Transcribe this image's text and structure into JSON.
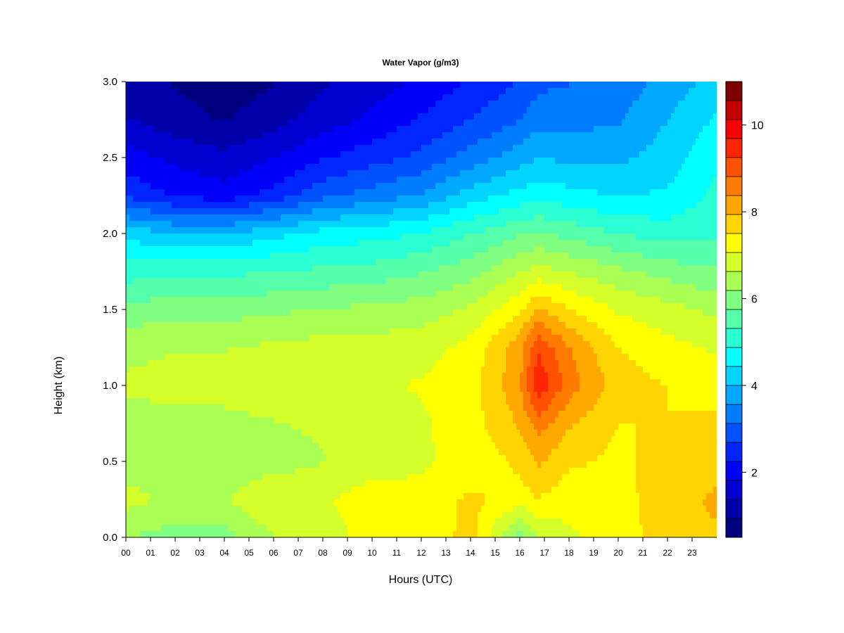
{
  "chart_data": {
    "type": "heatmap",
    "title": "Water Vapor (g/m3)",
    "xlabel": "Hours (UTC)",
    "ylabel": "Height (km)",
    "xlim": [
      0,
      24
    ],
    "ylim": [
      0.0,
      3.0
    ],
    "x_ticks": [
      "00",
      "01",
      "02",
      "03",
      "04",
      "05",
      "06",
      "07",
      "08",
      "09",
      "10",
      "11",
      "12",
      "13",
      "14",
      "15",
      "16",
      "17",
      "18",
      "19",
      "20",
      "21",
      "22",
      "23"
    ],
    "y_ticks": [
      "0.0",
      "0.5",
      "1.0",
      "1.5",
      "2.0",
      "2.5",
      "3.0"
    ],
    "colorbar": {
      "min": 0.5,
      "max": 11,
      "levels": 21,
      "tick_values": [
        2,
        4,
        6,
        8,
        10
      ],
      "tick_labels": [
        "2",
        "4",
        "6",
        "8",
        "10"
      ],
      "colors": [
        "#00007F",
        "#0000A8",
        "#0000D1",
        "#0000FA",
        "#0025FF",
        "#0051FF",
        "#007CFF",
        "#00A8FF",
        "#00D4FF",
        "#00FFFF",
        "#2AFFD4",
        "#55FFAA",
        "#80FF80",
        "#AAFF55",
        "#D4FF2A",
        "#FFFF00",
        "#FFD400",
        "#FFA800",
        "#FF7C00",
        "#FF5100",
        "#FF2500",
        "#FA0000",
        "#C20000",
        "#7F0000"
      ]
    },
    "heights_km": [
      0.0,
      0.25,
      0.5,
      0.75,
      1.0,
      1.25,
      1.5,
      1.75,
      2.0,
      2.25,
      2.5,
      2.75,
      3.0
    ],
    "hours_utc": [
      0,
      2,
      4,
      6,
      8,
      10,
      12,
      14,
      16,
      16.75,
      18,
      20,
      22,
      24
    ],
    "values": [
      [
        6.2,
        6.0,
        6.0,
        6.6,
        6.8,
        7.3,
        7.1,
        7.7,
        6.0,
        6.6,
        7.0,
        7.2,
        7.8,
        7.9
      ],
      [
        6.8,
        6.5,
        6.6,
        7.1,
        7.0,
        7.3,
        7.2,
        7.6,
        7.3,
        7.5,
        7.2,
        7.3,
        7.8,
        8.0
      ],
      [
        6.4,
        6.2,
        6.2,
        6.4,
        6.6,
        6.8,
        7.0,
        7.2,
        7.6,
        8.0,
        7.6,
        7.4,
        7.7,
        7.8
      ],
      [
        6.5,
        6.4,
        6.5,
        6.6,
        6.7,
        6.8,
        7.0,
        7.3,
        8.0,
        8.6,
        8.0,
        7.5,
        7.5,
        7.6
      ],
      [
        6.7,
        6.8,
        6.8,
        6.9,
        7.0,
        7.0,
        7.1,
        7.3,
        8.3,
        9.6,
        8.6,
        7.7,
        7.5,
        7.3
      ],
      [
        6.5,
        6.6,
        6.6,
        6.7,
        6.8,
        6.8,
        6.9,
        7.2,
        8.2,
        9.2,
        8.4,
        7.5,
        7.2,
        7.0
      ],
      [
        5.9,
        6.0,
        6.0,
        6.1,
        6.2,
        6.3,
        6.4,
        6.7,
        7.4,
        8.0,
        7.5,
        7.0,
        6.8,
        6.5
      ],
      [
        5.1,
        5.2,
        5.2,
        5.3,
        5.4,
        5.5,
        5.7,
        6.0,
        6.6,
        6.8,
        6.6,
        6.3,
        6.0,
        5.8
      ],
      [
        4.3,
        4.0,
        4.0,
        4.3,
        4.6,
        4.7,
        4.9,
        5.3,
        5.7,
        5.8,
        5.6,
        5.3,
        5.1,
        5.2
      ],
      [
        2.6,
        2.2,
        2.0,
        2.4,
        3.0,
        3.3,
        3.6,
        4.2,
        4.6,
        4.7,
        4.6,
        4.4,
        4.5,
        5.0
      ],
      [
        2.0,
        1.7,
        1.5,
        1.8,
        2.2,
        2.5,
        2.8,
        3.3,
        3.8,
        4.0,
        3.9,
        3.9,
        4.2,
        4.8
      ],
      [
        1.4,
        1.1,
        0.9,
        1.2,
        1.6,
        1.9,
        2.3,
        2.7,
        3.1,
        3.4,
        3.4,
        3.5,
        4.0,
        4.5
      ],
      [
        1.1,
        0.9,
        0.7,
        0.9,
        1.3,
        1.6,
        1.9,
        2.3,
        2.7,
        3.0,
        3.1,
        3.3,
        3.7,
        4.2
      ]
    ]
  }
}
